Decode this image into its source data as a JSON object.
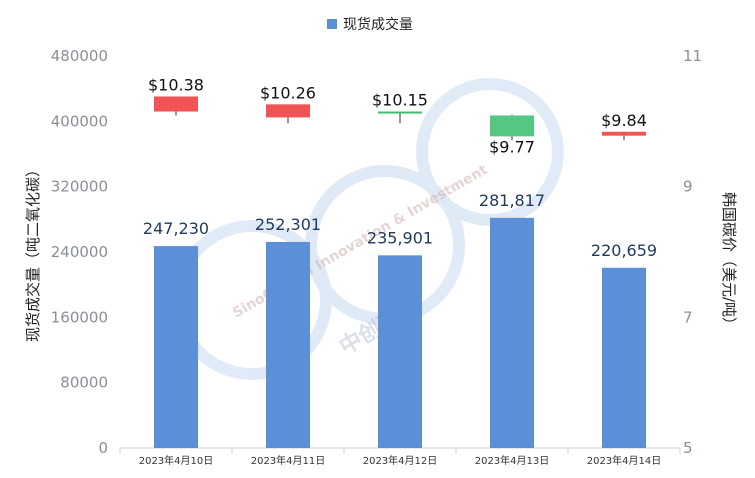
{
  "chart_data": {
    "type": "bar",
    "legend": {
      "label": "现货成交量",
      "color": "#5b8fd6",
      "position": "top-center"
    },
    "watermark": {
      "text_en": "SinoCarbon Innovation & Investment",
      "text_cn": "中创碳"
    },
    "left_axis": {
      "title": "现货成交量（吨二氧化碳）",
      "range": [
        0,
        480000
      ],
      "ticks": [
        "0",
        "80000",
        "160000",
        "240000",
        "320000",
        "400000",
        "480000"
      ]
    },
    "right_axis": {
      "title": "韩国碳价（美元/吨）",
      "range": [
        5,
        11
      ],
      "ticks": [
        "5",
        "7",
        "9",
        "11"
      ]
    },
    "categories": [
      "2023年4月10日",
      "2023年4月11日",
      "2023年4月12日",
      "2023年4月13日",
      "2023年4月14日"
    ],
    "volumes": [
      247230,
      252301,
      235901,
      281817,
      220659
    ],
    "volume_labels": [
      "247,230",
      "252,301",
      "235,901",
      "281,817",
      "220,659"
    ],
    "price_candles": [
      {
        "open": 10.15,
        "close": 10.38,
        "high": 10.38,
        "low": 10.09,
        "color": "#f05454",
        "label": "$10.38"
      },
      {
        "open": 10.06,
        "close": 10.26,
        "high": 10.26,
        "low": 9.97,
        "color": "#f05454",
        "label": "$10.26"
      },
      {
        "open": 10.13,
        "close": 10.15,
        "high": 10.15,
        "low": 9.97,
        "color": "#3cbf6e",
        "label": "$10.15"
      },
      {
        "open": 10.09,
        "close": 9.77,
        "high": 10.1,
        "low": 9.71,
        "color": "#54c882",
        "label": "$9.77"
      },
      {
        "open": 9.78,
        "close": 9.84,
        "high": 9.84,
        "low": 9.71,
        "color": "#f05454",
        "label": "$9.84"
      }
    ],
    "grid": false
  }
}
